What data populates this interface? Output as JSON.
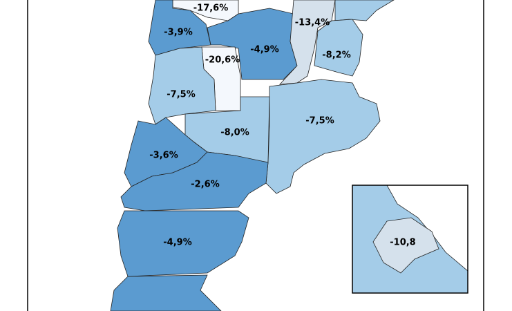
{
  "regions": [
    {
      "label": "-17,6%",
      "color": "#f4f8fd"
    },
    {
      "label": "-3,9%",
      "color": "#5b9bd0"
    },
    {
      "label": "-4,9%",
      "color": "#5b9bd0"
    },
    {
      "label": "-13,4%",
      "color": "#d5e1ec"
    },
    {
      "label": "-8,2%",
      "color": "#a4cce8"
    },
    {
      "label": "-20,6%",
      "color": "#f4f8fd"
    },
    {
      "label": "-7,5%",
      "color": "#a4cce8"
    },
    {
      "label": "-8,0%",
      "color": "#a4cce8"
    },
    {
      "label": "-7,5%",
      "color": "#a4cce8"
    },
    {
      "label": "-3,6%",
      "color": "#5b9bd0"
    },
    {
      "label": "-2,6%",
      "color": "#5b9bd0"
    },
    {
      "label": "-4,9%",
      "color": "#5b9bd0"
    }
  ],
  "inset": {
    "label": "-10,8",
    "color": "#d5e1ec"
  }
}
